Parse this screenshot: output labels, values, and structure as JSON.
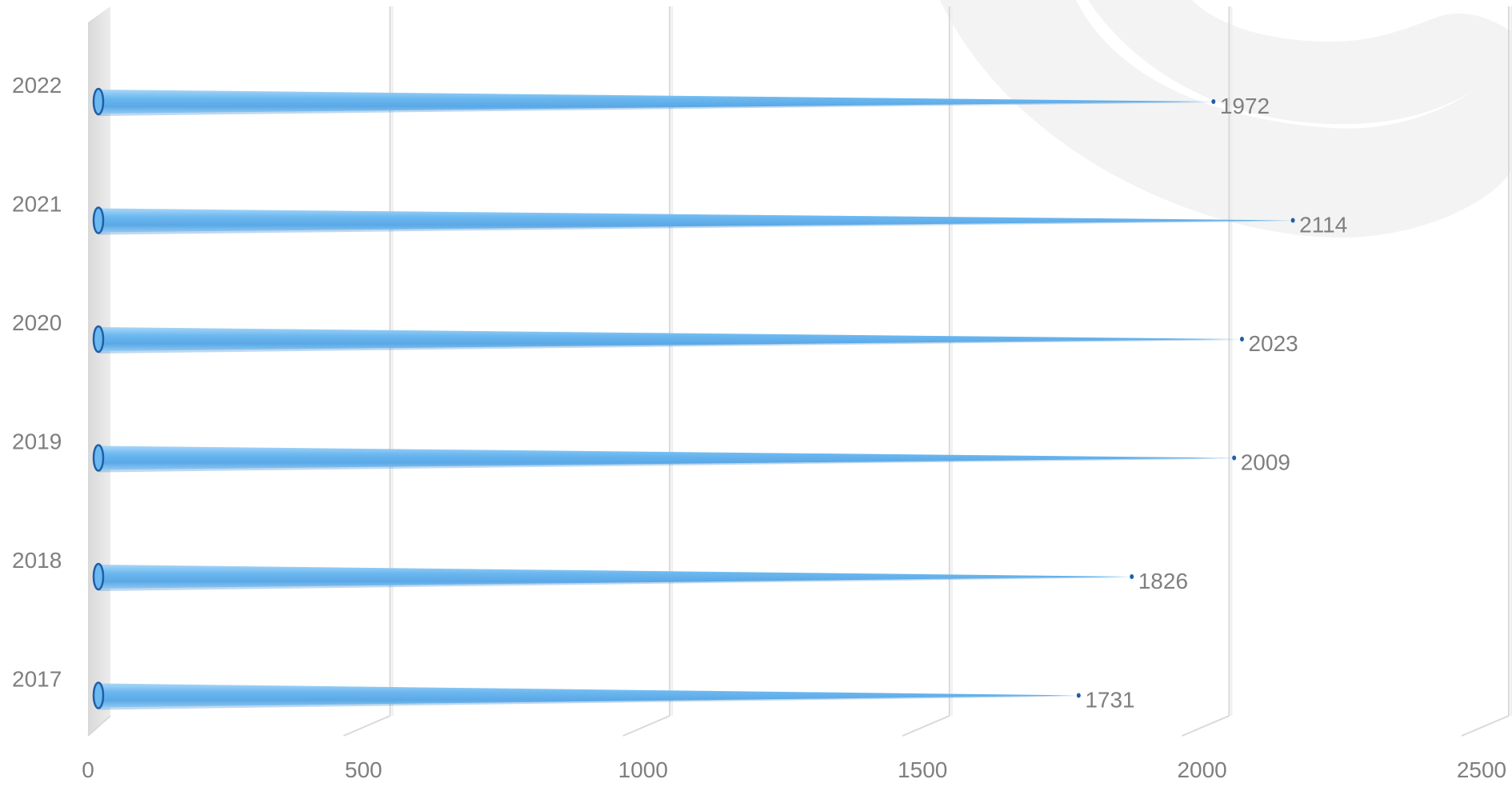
{
  "chart_data": {
    "type": "bar",
    "orientation": "horizontal",
    "style": "3d-cone",
    "categories": [
      "2017",
      "2018",
      "2019",
      "2020",
      "2021",
      "2022"
    ],
    "values": [
      1731,
      1826,
      2009,
      2023,
      2114,
      1972
    ],
    "title": "",
    "xlabel": "",
    "ylabel": "",
    "xlim": [
      0,
      2500
    ],
    "x_ticks": [
      0,
      500,
      1000,
      1500,
      2000,
      2500
    ],
    "grid": "vertical",
    "legend": "none",
    "data_labels": true,
    "colors": {
      "bar": "#6cb8f0",
      "bar_edge": "#1f5fa8",
      "text": "#7f7f7f",
      "grid": "#d9d9d9",
      "wall": "#e3e3e3",
      "watermark": "#f2f2f2"
    }
  }
}
